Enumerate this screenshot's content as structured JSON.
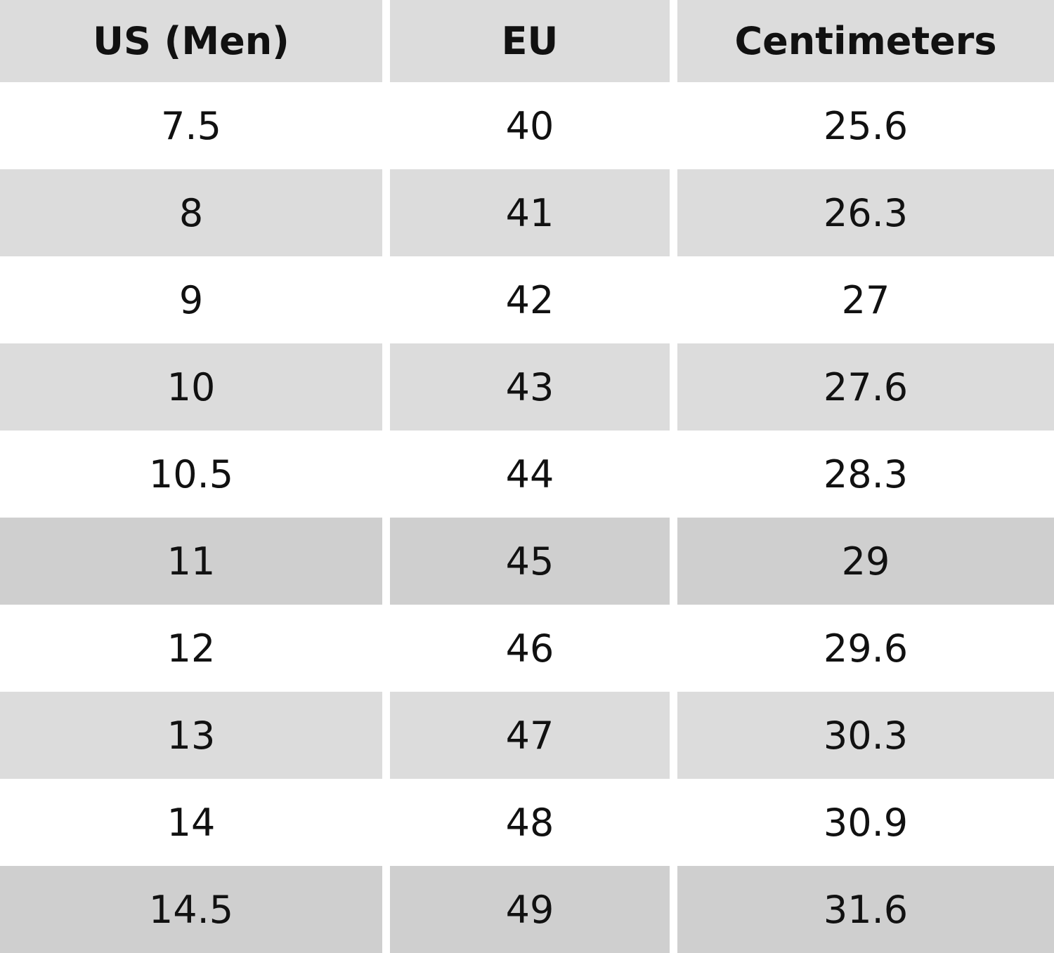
{
  "table": {
    "header": [
      "US (Men)",
      "EU",
      "Centimeters"
    ],
    "rows": [
      [
        "7.5",
        "40",
        "25.6"
      ],
      [
        "8",
        "41",
        "26.3"
      ],
      [
        "9",
        "42",
        "27"
      ],
      [
        "10",
        "43",
        "27.6"
      ],
      [
        "10.5",
        "44",
        "28.3"
      ],
      [
        "11",
        "45",
        "29"
      ],
      [
        "12",
        "46",
        "29.6"
      ],
      [
        "13",
        "47",
        "30.3"
      ],
      [
        "14",
        "48",
        "30.9"
      ],
      [
        "14.5",
        "49",
        "31.6"
      ]
    ]
  }
}
